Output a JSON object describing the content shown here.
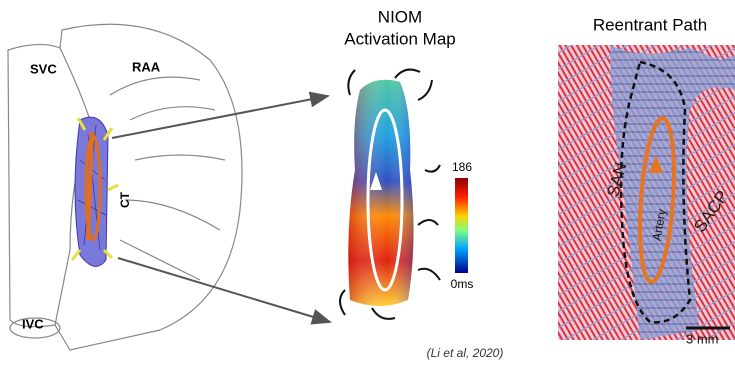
{
  "heart": {
    "svc": "SVC",
    "raa": "RAA",
    "ct": "CT",
    "ivc": "IVC"
  },
  "activation_map": {
    "title_line1": "NIOM",
    "title_line2": "Activation Map",
    "scale_max": "186",
    "scale_min": "0ms"
  },
  "histology": {
    "title": "Reentrant Path",
    "san": "SAN",
    "artery": "Artery",
    "sacp": "SACP",
    "scale_bar": "3 mm"
  },
  "citation": "(Li et al, 2020)"
}
